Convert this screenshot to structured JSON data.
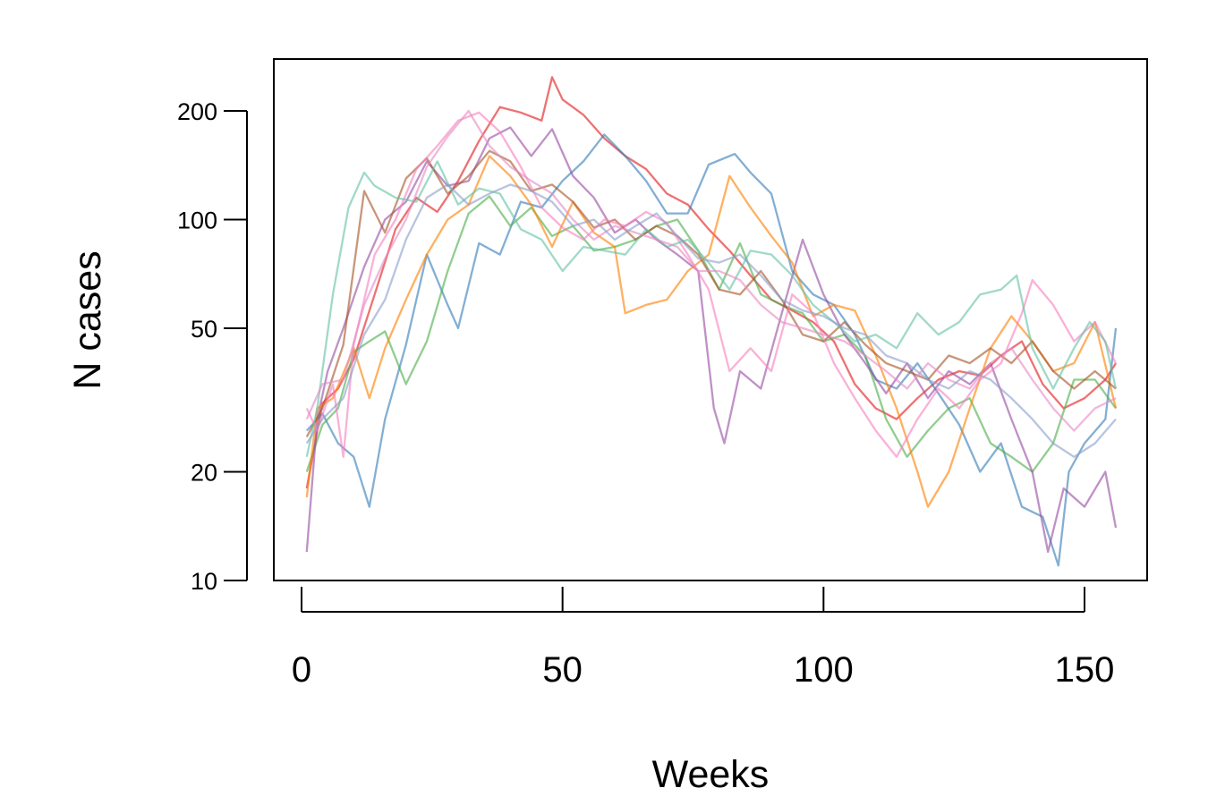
{
  "chart_data": {
    "type": "line",
    "title": "",
    "xlabel": "Weeks",
    "ylabel": "N cases",
    "xlim": [
      0,
      156
    ],
    "ylim": [
      10,
      250
    ],
    "yscale": "log",
    "grid": false,
    "legend": "none",
    "xticks": [
      0,
      50,
      100,
      150
    ],
    "xtick_labels": [
      "0",
      "50",
      "100",
      "150"
    ],
    "yticks": [
      10,
      20,
      50,
      100,
      200
    ],
    "ytick_labels": [
      "10",
      "20",
      "50",
      "100",
      "200"
    ],
    "series": [
      {
        "color": "#e41a1c",
        "x": [
          1,
          4,
          7,
          10,
          14,
          18,
          22,
          26,
          30,
          34,
          38,
          42,
          46,
          48,
          50,
          54,
          58,
          62,
          66,
          70,
          74,
          78,
          82,
          86,
          90,
          94,
          98,
          102,
          106,
          110,
          114,
          118,
          122,
          126,
          130,
          134,
          138,
          142,
          146,
          150,
          154,
          156
        ],
        "values": [
          18,
          31,
          34,
          41,
          62,
          94,
          115,
          105,
          128,
          165,
          205,
          198,
          188,
          248,
          215,
          195,
          168,
          150,
          138,
          118,
          110,
          94,
          82,
          70,
          60,
          56,
          52,
          46,
          35,
          30,
          28,
          32,
          36,
          38,
          37,
          42,
          46,
          35,
          30,
          32,
          36,
          40
        ]
      },
      {
        "color": "#377eb8",
        "x": [
          1,
          4,
          7,
          10,
          13,
          16,
          20,
          24,
          28,
          30,
          34,
          38,
          42,
          46,
          50,
          54,
          58,
          62,
          66,
          70,
          74,
          78,
          83,
          86,
          90,
          94,
          98,
          102,
          106,
          110,
          114,
          118,
          122,
          126,
          130,
          134,
          138,
          142,
          145,
          147,
          150,
          154,
          156
        ],
        "values": [
          26,
          29,
          24,
          22,
          16,
          28,
          45,
          80,
          58,
          50,
          86,
          80,
          112,
          108,
          128,
          145,
          172,
          150,
          128,
          104,
          104,
          142,
          152,
          135,
          118,
          72,
          62,
          58,
          48,
          36,
          34,
          40,
          33,
          27,
          20,
          24,
          16,
          15,
          11,
          20,
          24,
          28,
          50
        ]
      },
      {
        "color": "#4daf4a",
        "x": [
          1,
          4,
          7,
          10,
          13,
          16,
          20,
          24,
          28,
          32,
          36,
          40,
          44,
          48,
          52,
          56,
          60,
          64,
          68,
          72,
          76,
          80,
          84,
          88,
          92,
          96,
          100,
          104,
          108,
          112,
          116,
          120,
          124,
          128,
          132,
          136,
          140,
          144,
          148,
          152,
          156
        ],
        "values": [
          20,
          27,
          30,
          43,
          46,
          49,
          35,
          46,
          72,
          104,
          116,
          96,
          108,
          90,
          96,
          82,
          84,
          88,
          96,
          100,
          82,
          64,
          86,
          62,
          58,
          55,
          46,
          48,
          42,
          28,
          22,
          26,
          30,
          32,
          24,
          22,
          20,
          24,
          36,
          36,
          30
        ]
      },
      {
        "color": "#984ea3",
        "x": [
          1,
          3,
          5,
          8,
          12,
          16,
          20,
          24,
          28,
          32,
          36,
          40,
          44,
          48,
          52,
          56,
          60,
          64,
          68,
          72,
          76,
          79,
          81,
          84,
          88,
          92,
          96,
          100,
          104,
          108,
          112,
          116,
          120,
          124,
          128,
          132,
          136,
          140,
          143,
          146,
          150,
          154,
          156
        ],
        "values": [
          12,
          28,
          38,
          50,
          74,
          100,
          112,
          145,
          124,
          128,
          168,
          180,
          150,
          178,
          132,
          115,
          92,
          100,
          88,
          80,
          72,
          30,
          24,
          38,
          34,
          55,
          88,
          62,
          48,
          40,
          33,
          40,
          32,
          38,
          35,
          40,
          28,
          20,
          12,
          18,
          16,
          20,
          14
        ]
      },
      {
        "color": "#ff7f00",
        "x": [
          1,
          3,
          6,
          10,
          13,
          16,
          20,
          24,
          28,
          32,
          36,
          40,
          44,
          48,
          52,
          56,
          60,
          62,
          66,
          70,
          74,
          78,
          82,
          86,
          90,
          94,
          98,
          102,
          106,
          110,
          114,
          118,
          120,
          124,
          128,
          132,
          136,
          140,
          144,
          148,
          152,
          156
        ],
        "values": [
          17,
          30,
          32,
          44,
          32,
          44,
          60,
          80,
          100,
          110,
          150,
          132,
          110,
          84,
          112,
          92,
          84,
          55,
          58,
          60,
          72,
          80,
          132,
          108,
          90,
          76,
          54,
          58,
          56,
          42,
          30,
          20,
          16,
          20,
          30,
          44,
          54,
          46,
          38,
          40,
          52,
          30
        ]
      },
      {
        "color": "#a65628",
        "x": [
          1,
          4,
          8,
          12,
          16,
          20,
          24,
          28,
          32,
          36,
          40,
          44,
          48,
          52,
          56,
          60,
          64,
          68,
          72,
          76,
          80,
          84,
          88,
          92,
          96,
          100,
          104,
          108,
          112,
          116,
          120,
          124,
          128,
          132,
          136,
          140,
          144,
          148,
          152,
          156
        ],
        "values": [
          25,
          30,
          45,
          120,
          92,
          130,
          148,
          118,
          132,
          155,
          145,
          120,
          125,
          112,
          95,
          100,
          88,
          96,
          90,
          80,
          64,
          62,
          72,
          60,
          48,
          46,
          52,
          45,
          40,
          38,
          36,
          42,
          40,
          44,
          40,
          46,
          38,
          34,
          38,
          34
        ]
      },
      {
        "color": "#f781bf",
        "x": [
          1,
          3,
          6,
          8,
          10,
          14,
          18,
          22,
          26,
          30,
          34,
          38,
          42,
          46,
          50,
          54,
          58,
          62,
          66,
          70,
          74,
          78,
          82,
          86,
          90,
          94,
          98,
          102,
          106,
          110,
          114,
          118,
          122,
          126,
          130,
          134,
          138,
          140,
          144,
          148,
          152,
          156
        ],
        "values": [
          30,
          26,
          35,
          22,
          45,
          80,
          100,
          138,
          160,
          188,
          198,
          175,
          140,
          108,
          95,
          88,
          100,
          96,
          105,
          98,
          80,
          64,
          38,
          44,
          38,
          62,
          55,
          40,
          32,
          26,
          22,
          28,
          34,
          30,
          36,
          40,
          55,
          68,
          58,
          46,
          52,
          40
        ]
      },
      {
        "color": "#66c2a5",
        "x": [
          1,
          3,
          6,
          9,
          12,
          14,
          18,
          22,
          26,
          30,
          34,
          38,
          42,
          46,
          50,
          54,
          58,
          62,
          66,
          70,
          74,
          78,
          82,
          86,
          90,
          94,
          98,
          102,
          106,
          110,
          114,
          118,
          122,
          126,
          130,
          134,
          137,
          140,
          144,
          148,
          151,
          154,
          156
        ],
        "values": [
          22,
          30,
          62,
          108,
          135,
          124,
          115,
          112,
          145,
          110,
          122,
          118,
          94,
          88,
          72,
          84,
          82,
          80,
          94,
          84,
          88,
          76,
          64,
          82,
          80,
          70,
          58,
          52,
          46,
          48,
          44,
          55,
          48,
          52,
          62,
          64,
          70,
          44,
          34,
          44,
          52,
          46,
          34
        ]
      },
      {
        "color": "#e78ac3",
        "x": [
          1,
          4,
          8,
          12,
          16,
          20,
          24,
          28,
          32,
          36,
          40,
          44,
          48,
          52,
          56,
          60,
          64,
          68,
          72,
          76,
          80,
          84,
          88,
          92,
          96,
          100,
          104,
          108,
          112,
          116,
          120,
          124,
          128,
          132,
          136,
          140,
          144,
          148,
          152,
          156
        ],
        "values": [
          28,
          35,
          36,
          58,
          78,
          100,
          140,
          170,
          200,
          160,
          140,
          128,
          118,
          100,
          88,
          96,
          92,
          88,
          84,
          72,
          72,
          68,
          58,
          52,
          50,
          48,
          46,
          42,
          38,
          34,
          40,
          36,
          34,
          40,
          44,
          36,
          30,
          26,
          30,
          32
        ]
      },
      {
        "color": "#8da0cb",
        "x": [
          1,
          4,
          8,
          12,
          16,
          20,
          24,
          28,
          32,
          36,
          40,
          44,
          48,
          52,
          56,
          60,
          64,
          68,
          72,
          76,
          80,
          84,
          88,
          92,
          96,
          100,
          104,
          108,
          112,
          116,
          120,
          124,
          128,
          132,
          136,
          140,
          144,
          148,
          152,
          156
        ],
        "values": [
          24,
          28,
          32,
          48,
          60,
          88,
          115,
          125,
          110,
          118,
          125,
          120,
          112,
          96,
          100,
          88,
          96,
          104,
          90,
          78,
          76,
          80,
          70,
          60,
          56,
          54,
          50,
          48,
          42,
          40,
          36,
          34,
          38,
          36,
          32,
          28,
          24,
          22,
          24,
          28
        ]
      }
    ]
  }
}
